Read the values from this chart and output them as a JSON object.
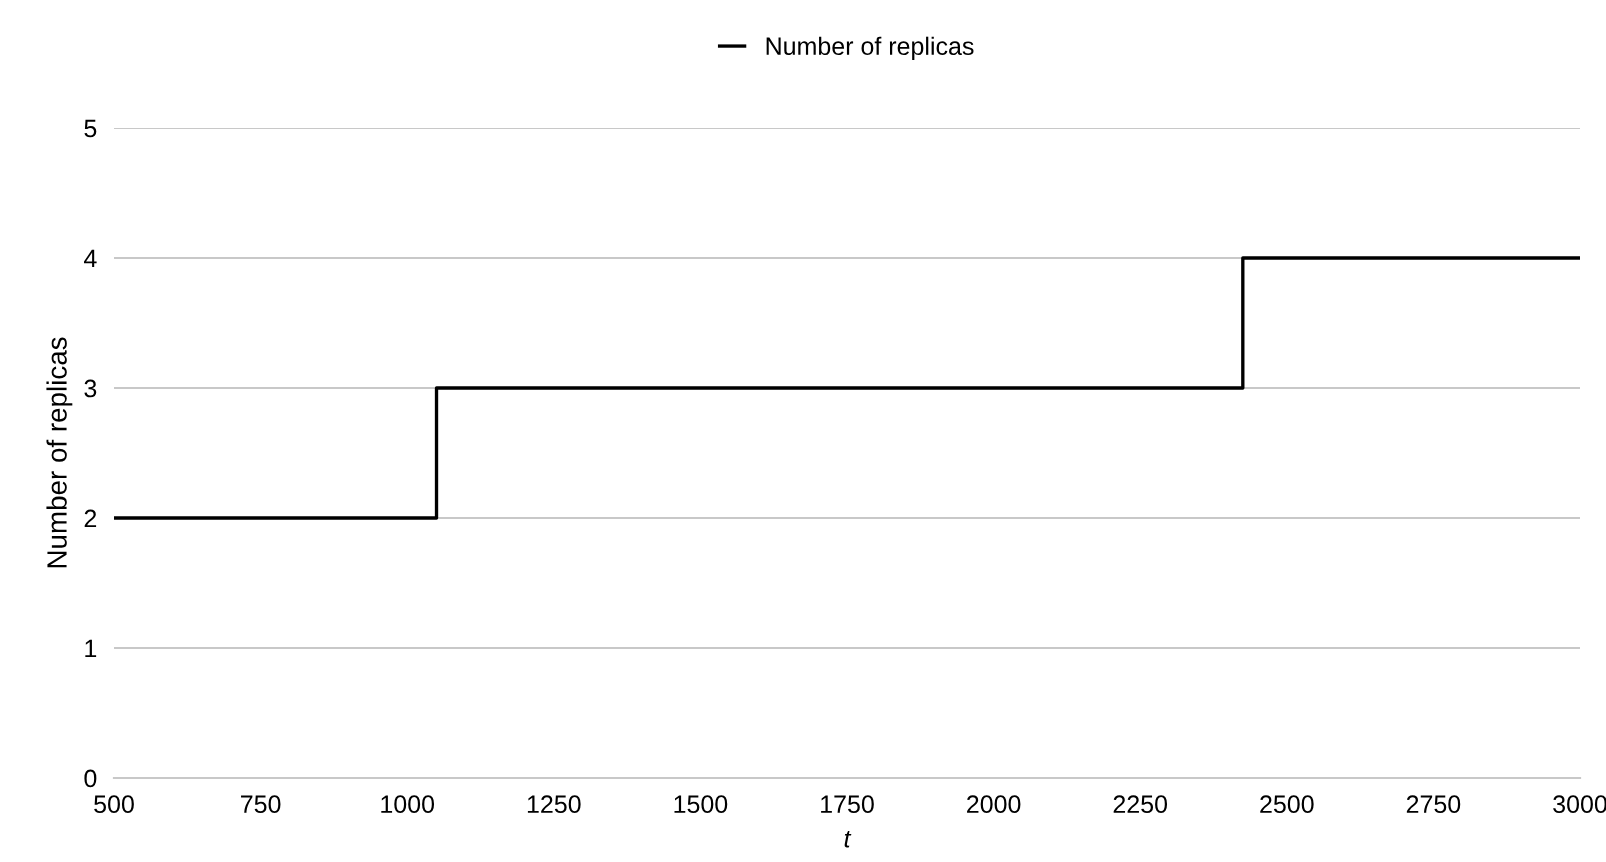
{
  "chart_data": {
    "type": "step",
    "xlabel": "t",
    "ylabel": "Number of replicas",
    "x": [
      500,
      1050,
      2425,
      3000
    ],
    "series": [
      {
        "name": "Number of replicas",
        "color": "#000000",
        "values": [
          2,
          3,
          4,
          4
        ]
      }
    ],
    "xlim": [
      500,
      3000
    ],
    "xticks": [
      500,
      750,
      1000,
      1250,
      1500,
      1750,
      2000,
      2250,
      2500,
      2750,
      3000
    ],
    "ylim": [
      0,
      5
    ],
    "yticks": [
      0,
      1,
      2,
      3,
      4,
      5
    ],
    "grid": "y",
    "legend": "top"
  }
}
